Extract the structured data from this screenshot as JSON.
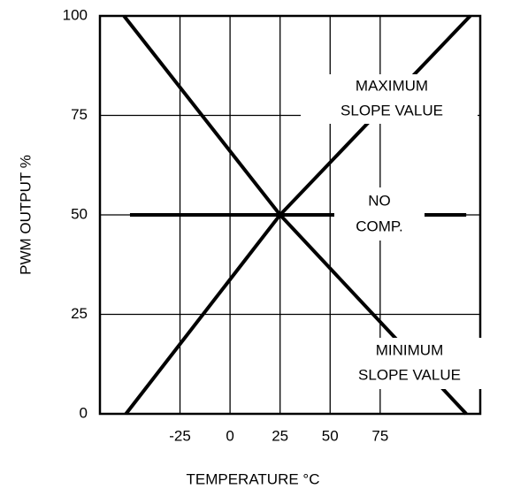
{
  "chart_data": {
    "type": "line",
    "xlabel": "TEMPERATURE °C",
    "ylabel": "PWM OUTPUT %",
    "xlim": [
      -65,
      125
    ],
    "ylim": [
      0,
      100
    ],
    "xticks": [
      -25,
      0,
      25,
      50,
      75
    ],
    "yticks": [
      0,
      25,
      50,
      75,
      100
    ],
    "grid": true,
    "series": [
      {
        "color": "#000000",
        "x": [
          -52,
          25,
          120
        ],
        "values": [
          0,
          50,
          100
        ]
      },
      {
        "color": "#000000",
        "x": [
          -53,
          25,
          118
        ],
        "values": [
          100,
          50,
          0
        ]
      },
      {
        "color": "#000000",
        "x": [
          -50,
          118
        ],
        "values": [
          50,
          50
        ]
      }
    ],
    "annotations": [
      "MAXIMUM",
      "SLOPE VALUE",
      "NO",
      "COMP.",
      "MINIMUM",
      "SLOPE VALUE"
    ]
  }
}
